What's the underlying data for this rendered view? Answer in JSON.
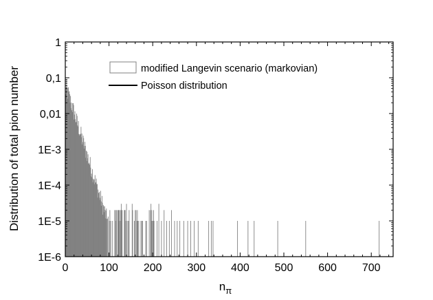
{
  "chart_data": {
    "type": "bar",
    "xlabel": "n",
    "xlabel_sub": "π",
    "ylabel": "Distribution of total pion number",
    "xlim": [
      0,
      750
    ],
    "ylim": [
      1e-06,
      1
    ],
    "yscale": "log",
    "x_ticks": [
      0,
      100,
      200,
      300,
      400,
      500,
      600,
      700
    ],
    "x_tick_labels": [
      "0",
      "100",
      "200",
      "300",
      "400",
      "500",
      "600",
      "700"
    ],
    "y_ticks": [
      1e-06,
      1e-05,
      0.0001,
      0.001,
      0.01,
      0.1,
      1
    ],
    "y_tick_labels": [
      "1E-6",
      "1E-5",
      "1E-4",
      "1E-3",
      "0,01",
      "0,1",
      "1"
    ],
    "legend_position": "top-center",
    "series": [
      {
        "name": "modified Langevin scenario (markovian)",
        "kind": "histogram",
        "color": "#808080",
        "peak_x": 3,
        "peak_value": 0.05,
        "decay_per_unit": 0.0388,
        "continuous_up_to": 205,
        "tail_spikes": [
          {
            "x": 210,
            "value": 1e-05
          },
          {
            "x": 214,
            "value": 3e-05
          },
          {
            "x": 220,
            "value": 1e-05
          },
          {
            "x": 226,
            "value": 2e-05
          },
          {
            "x": 232,
            "value": 1e-05
          },
          {
            "x": 238,
            "value": 1e-05
          },
          {
            "x": 243,
            "value": 2e-05
          },
          {
            "x": 250,
            "value": 1e-05
          },
          {
            "x": 256,
            "value": 1e-05
          },
          {
            "x": 262,
            "value": 1e-05
          },
          {
            "x": 271,
            "value": 1e-05
          },
          {
            "x": 280,
            "value": 1e-05
          },
          {
            "x": 287,
            "value": 1e-05
          },
          {
            "x": 295,
            "value": 1e-05
          },
          {
            "x": 304,
            "value": 1e-05
          },
          {
            "x": 328,
            "value": 1e-05
          },
          {
            "x": 334,
            "value": 1e-05
          },
          {
            "x": 338,
            "value": 1e-05
          },
          {
            "x": 394,
            "value": 1e-05
          },
          {
            "x": 418,
            "value": 1e-05
          },
          {
            "x": 432,
            "value": 1e-05
          },
          {
            "x": 486,
            "value": 1e-05
          },
          {
            "x": 550,
            "value": 1e-05
          },
          {
            "x": 718,
            "value": 1e-05
          }
        ]
      },
      {
        "name": "Poisson distribution",
        "kind": "line",
        "color": "#000000",
        "mean": 20
      }
    ]
  }
}
